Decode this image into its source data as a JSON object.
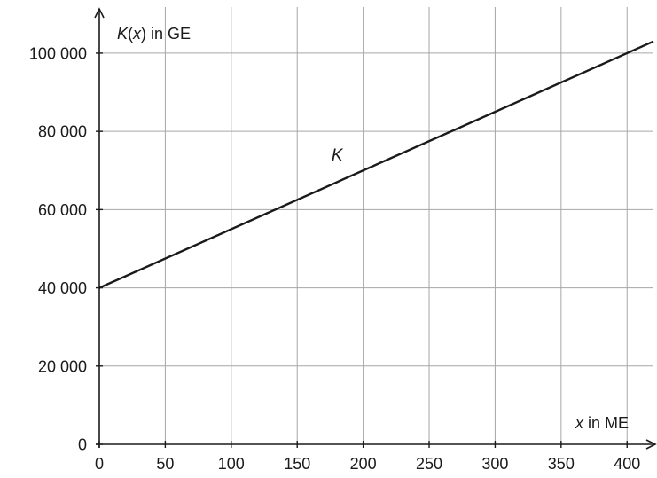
{
  "chart_data": {
    "type": "line",
    "xlabel": {
      "var": "x",
      "rest": " in ME"
    },
    "ylabel": {
      "fn": "K",
      "open": "(",
      "var": "x",
      "close": ")",
      "rest": " in GE"
    },
    "xlim": [
      0,
      420
    ],
    "ylim": [
      0,
      112000
    ],
    "x_ticks": [
      0,
      50,
      100,
      150,
      200,
      250,
      300,
      350,
      400
    ],
    "x_tick_labels": [
      "0",
      "50",
      "100",
      "150",
      "200",
      "250",
      "300",
      "350",
      "400"
    ],
    "y_ticks": [
      0,
      20000,
      40000,
      60000,
      80000,
      100000
    ],
    "y_tick_labels": [
      "0",
      "20 000",
      "40 000",
      "60 000",
      "80 000",
      "100 000"
    ],
    "grid": true,
    "series": [
      {
        "name": "K",
        "x": [
          0,
          420
        ],
        "y": [
          40000,
          103000
        ]
      }
    ],
    "annotations": [
      {
        "text": "K",
        "x": 176,
        "y": 72500
      }
    ]
  },
  "colors": {
    "line": "#1a1a1a",
    "grid": "#a6a6a6",
    "axis": "#1a1a1a",
    "background": "#ffffff"
  }
}
